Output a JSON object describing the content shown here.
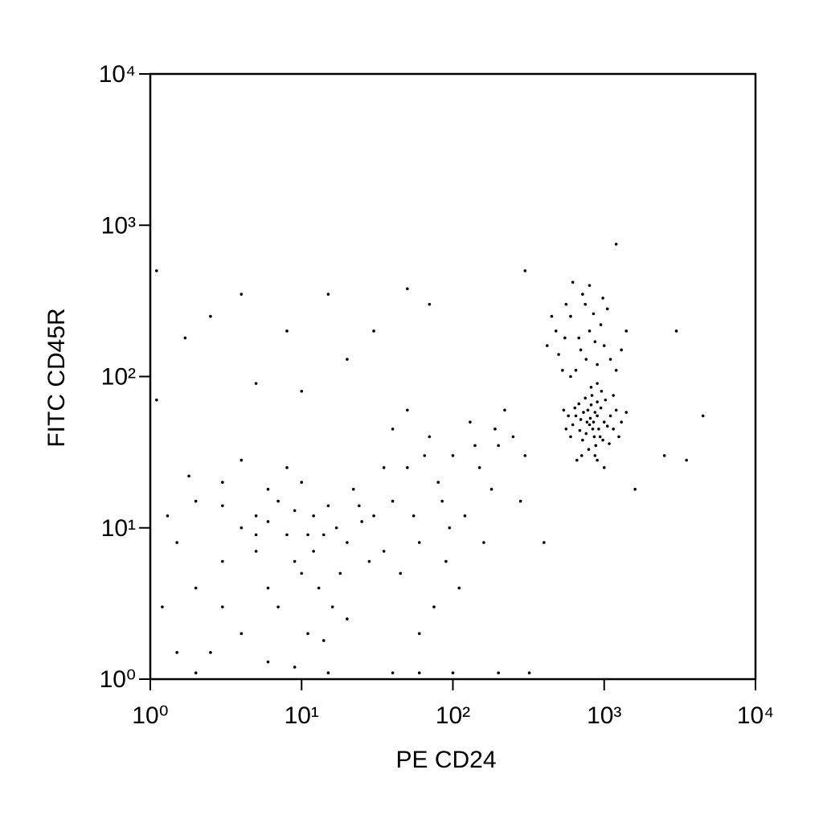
{
  "chart_data": {
    "type": "scatter",
    "x_label": "PE CD24",
    "y_label": "FITC CD45R",
    "xscale": "log",
    "yscale": "log",
    "color": "#000000",
    "xlim": [
      1,
      10000
    ],
    "ylim": [
      1,
      10000
    ],
    "xticks": [
      {
        "value": 1,
        "label": "10⁰"
      },
      {
        "value": 10,
        "label": "10¹"
      },
      {
        "value": 100,
        "label": "10²"
      },
      {
        "value": 1000,
        "label": "10³"
      },
      {
        "value": 10000,
        "label": "10⁴"
      }
    ],
    "yticks": [
      {
        "value": 1,
        "label": "10⁰"
      },
      {
        "value": 10,
        "label": "10¹"
      },
      {
        "value": 100,
        "label": "10²"
      },
      {
        "value": 1000,
        "label": "10³"
      },
      {
        "value": 10000,
        "label": "10⁴"
      }
    ],
    "x": [
      850,
      800,
      900,
      780,
      920,
      700,
      1000,
      860,
      820,
      760,
      950,
      880,
      730,
      1050,
      690,
      810,
      870,
      940,
      770,
      840,
      900,
      650,
      1100,
      980,
      720,
      830,
      1150,
      620,
      790,
      1020,
      680,
      870,
      1200,
      600,
      960,
      750,
      1080,
      640,
      900,
      1300,
      580,
      710,
      1250,
      820,
      560,
      1000,
      1400,
      660,
      1150,
      540,
      700,
      800,
      600,
      900,
      550,
      750,
      650,
      1000,
      850,
      500,
      720,
      950,
      600,
      1100,
      480,
      800,
      680,
      1200,
      560,
      900,
      1300,
      450,
      760,
      620,
      1050,
      420,
      980,
      530,
      1400,
      870,
      8,
      5,
      12,
      3,
      15,
      6,
      10,
      4,
      20,
      7,
      2,
      18,
      9,
      25,
      3,
      11,
      6,
      14,
      1.5,
      30,
      5,
      8,
      2,
      16,
      22,
      4,
      12,
      7,
      1.3,
      3,
      10,
      28,
      2.5,
      6,
      14,
      9,
      1.2,
      1.5,
      20,
      35,
      4,
      1.8,
      13,
      17,
      5,
      9,
      24,
      3,
      11,
      6,
      40,
      50,
      60,
      80,
      100,
      120,
      45,
      70,
      150,
      200,
      90,
      55,
      130,
      180,
      250,
      110,
      65,
      300,
      40,
      160,
      85,
      220,
      75,
      140,
      50,
      35,
      95,
      190,
      280,
      60,
      4,
      2.5,
      15,
      50,
      30,
      8,
      20,
      5,
      300,
      1200,
      4500,
      3500,
      3000,
      2500,
      1.7,
      10,
      70,
      1600,
      400,
      320,
      1.1,
      1.1,
      40,
      100,
      200,
      15,
      2,
      60
    ],
    "y": [
      50,
      48,
      55,
      60,
      45,
      52,
      50,
      40,
      65,
      42,
      62,
      35,
      58,
      47,
      44,
      53,
      58,
      40,
      50,
      45,
      68,
      55,
      55,
      38,
      38,
      75,
      45,
      48,
      33,
      70,
      66,
      30,
      60,
      40,
      80,
      72,
      36,
      62,
      28,
      50,
      55,
      30,
      40,
      85,
      45,
      25,
      58,
      28,
      75,
      60,
      150,
      200,
      250,
      120,
      180,
      300,
      110,
      160,
      260,
      140,
      350,
      220,
      100,
      130,
      200,
      400,
      180,
      110,
      300,
      90,
      150,
      250,
      130,
      420,
      280,
      160,
      330,
      110,
      200,
      170,
      9,
      12,
      7,
      6,
      14,
      4,
      20,
      10,
      8,
      3,
      15,
      5,
      13,
      11,
      3,
      2,
      18,
      9,
      8,
      12,
      7,
      25,
      4,
      3,
      18,
      2,
      12,
      15,
      12,
      20,
      5,
      6,
      1.5,
      1.3,
      1.8,
      1.2,
      3,
      1.5,
      2.5,
      7,
      28,
      22,
      4,
      10,
      9,
      6,
      14,
      14,
      9,
      11,
      15,
      25,
      8,
      20,
      30,
      12,
      5,
      40,
      25,
      35,
      6,
      12,
      50,
      18,
      40,
      4,
      30,
      30,
      45,
      8,
      15,
      60,
      3,
      35,
      60,
      25,
      10,
      45,
      15,
      2,
      350,
      250,
      350,
      380,
      200,
      200,
      130,
      90,
      500,
      750,
      55,
      28,
      200,
      30,
      180,
      80,
      300,
      18,
      8,
      1.1,
      70,
      500,
      1.1,
      1.1,
      1.1,
      1.1,
      1.1,
      1.1
    ]
  }
}
